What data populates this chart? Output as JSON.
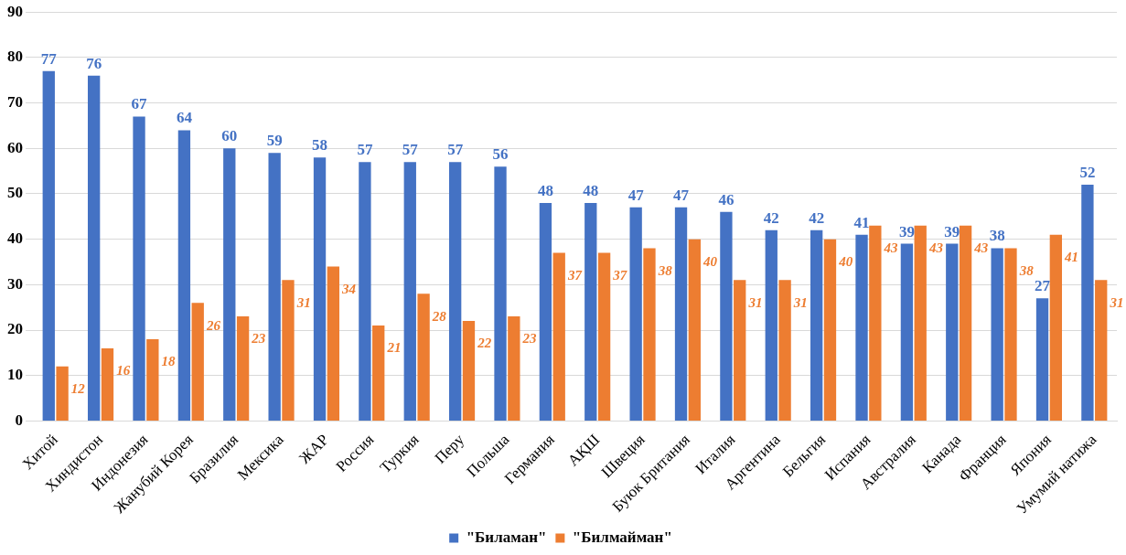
{
  "chart_data": {
    "type": "bar",
    "categories": [
      "Хитой",
      "Хиндистон",
      "Индонезия",
      "Жанубий Корея",
      "Бразилия",
      "Мексика",
      "ЖАР",
      "Россия",
      "Туркия",
      "Перу",
      "Польша",
      "Германия",
      "АҚШ",
      "Швеция",
      "Буюк Британия",
      "Италия",
      "Аргентина",
      "Бельгия",
      "Испания",
      "Австралия",
      "Канада",
      "Франция",
      "Япония",
      "Умумий натижа"
    ],
    "series": [
      {
        "name": "\"Биламан\"",
        "color": "#4472c4",
        "values": [
          77,
          76,
          67,
          64,
          60,
          59,
          58,
          57,
          57,
          57,
          56,
          48,
          48,
          47,
          47,
          46,
          42,
          42,
          41,
          39,
          39,
          38,
          27,
          52
        ]
      },
      {
        "name": "\"Билмайман\"",
        "color": "#ed7d31",
        "values": [
          12,
          16,
          18,
          26,
          23,
          31,
          34,
          21,
          28,
          22,
          23,
          37,
          37,
          38,
          40,
          31,
          31,
          40,
          43,
          43,
          43,
          38,
          41,
          31
        ]
      }
    ],
    "ylim": [
      0,
      90
    ],
    "yticks": [
      0,
      10,
      20,
      30,
      40,
      50,
      60,
      70,
      80,
      90
    ],
    "grid": "y",
    "legend": "bottom",
    "data_labels": true
  }
}
